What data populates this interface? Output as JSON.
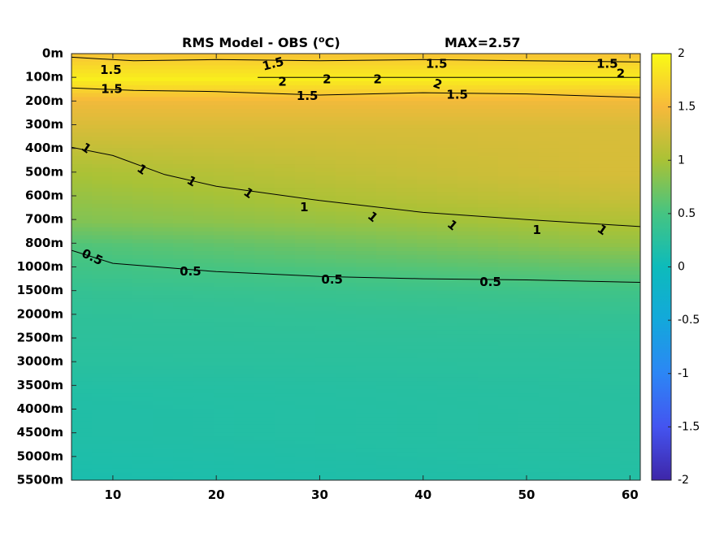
{
  "chart_data": {
    "type": "heatmap",
    "title": "RMS Model - OBS (",
    "title_degree": "o",
    "title_unit": "C)",
    "max_annotation": "MAX=2.57",
    "xlabel": "",
    "ylabel": "",
    "x_ticks": [
      "10",
      "20",
      "30",
      "40",
      "50",
      "60"
    ],
    "x_tick_values": [
      10,
      20,
      30,
      40,
      50,
      60
    ],
    "xlim": [
      6,
      61
    ],
    "y_ticks": [
      "0m",
      "100m",
      "200m",
      "300m",
      "400m",
      "500m",
      "600m",
      "700m",
      "800m",
      "1000m",
      "1500m",
      "2000m",
      "2500m",
      "3000m",
      "3500m",
      "4000m",
      "4500m",
      "5000m",
      "5500m"
    ],
    "colorbar": {
      "range": [
        -2,
        2
      ],
      "ticks": [
        "2",
        "1.5",
        "1",
        "0.5",
        "0",
        "-0.5",
        "-1",
        "-1.5",
        "-2"
      ],
      "tick_values": [
        2,
        1.5,
        1,
        0.5,
        0,
        -0.5,
        -1,
        -1.5,
        -2
      ],
      "colormap": "parula"
    },
    "field_levels": [
      {
        "y_index": 0,
        "values": [
          1.6,
          1.6
        ]
      },
      {
        "y_index": 1,
        "values": [
          1.9,
          1.9
        ]
      },
      {
        "y_index": 2,
        "values": [
          1.45,
          1.45
        ]
      },
      {
        "y_index": 3,
        "values": [
          1.3,
          1.3
        ]
      },
      {
        "y_index": 4,
        "values": [
          1.15,
          1.3
        ]
      },
      {
        "y_index": 5,
        "values": [
          1.0,
          1.3
        ]
      },
      {
        "y_index": 6,
        "values": [
          0.9,
          1.2
        ]
      },
      {
        "y_index": 7,
        "values": [
          0.8,
          1.05
        ]
      },
      {
        "y_index": 8,
        "values": [
          0.55,
          0.9
        ]
      },
      {
        "y_index": 9,
        "values": [
          0.45,
          0.65
        ]
      },
      {
        "y_index": 10,
        "values": [
          0.35,
          0.45
        ]
      },
      {
        "y_index": 11,
        "values": [
          0.3,
          0.35
        ]
      },
      {
        "y_index": 12,
        "values": [
          0.28,
          0.3
        ]
      },
      {
        "y_index": 13,
        "values": [
          0.25,
          0.27
        ]
      },
      {
        "y_index": 14,
        "values": [
          0.2,
          0.25
        ]
      },
      {
        "y_index": 15,
        "values": [
          0.18,
          0.24
        ]
      },
      {
        "y_index": 16,
        "values": [
          0.18,
          0.24
        ]
      },
      {
        "y_index": 17,
        "values": [
          0.15,
          0.22
        ]
      },
      {
        "y_index": 18,
        "values": [
          0.12,
          0.2
        ]
      }
    ],
    "contours": [
      {
        "level": "1.5",
        "points": [
          [
            6,
            0.15
          ],
          [
            12,
            0.3
          ],
          [
            20,
            0.25
          ],
          [
            30,
            0.3
          ],
          [
            40,
            0.25
          ],
          [
            50,
            0.3
          ],
          [
            61,
            0.35
          ]
        ]
      },
      {
        "level": "2",
        "points": [
          [
            24,
            1.0
          ],
          [
            30,
            1.0
          ],
          [
            40,
            1.0
          ],
          [
            50,
            1.0
          ],
          [
            61,
            1.0
          ]
        ]
      },
      {
        "level": "1.5",
        "points": [
          [
            6,
            1.45
          ],
          [
            12,
            1.55
          ],
          [
            20,
            1.6
          ],
          [
            30,
            1.75
          ],
          [
            40,
            1.65
          ],
          [
            50,
            1.7
          ],
          [
            61,
            1.85
          ]
        ]
      },
      {
        "level": "1",
        "points": [
          [
            6,
            3.95
          ],
          [
            10,
            4.3
          ],
          [
            15,
            5.1
          ],
          [
            20,
            5.6
          ],
          [
            30,
            6.2
          ],
          [
            40,
            6.7
          ],
          [
            50,
            7.0
          ],
          [
            61,
            7.3
          ]
        ]
      },
      {
        "level": "0.5",
        "points": [
          [
            6,
            8.3
          ],
          [
            10,
            8.85
          ],
          [
            20,
            9.2
          ],
          [
            30,
            9.4
          ],
          [
            40,
            9.5
          ],
          [
            50,
            9.55
          ],
          [
            61,
            9.65
          ]
        ]
      }
    ],
    "contour_labels": [
      {
        "text": "1.5",
        "x": 25.5,
        "y": 0.45,
        "angle": -15
      },
      {
        "text": "1.5",
        "x": 41.3,
        "y": 0.45,
        "angle": 0
      },
      {
        "text": "1.5",
        "x": 57.8,
        "y": 0.45,
        "angle": 0
      },
      {
        "text": "1.5",
        "x": 9.8,
        "y": 0.7,
        "angle": 0
      },
      {
        "text": "2",
        "x": 26.4,
        "y": 1.2,
        "angle": 0
      },
      {
        "text": "2",
        "x": 30.7,
        "y": 1.1,
        "angle": 0
      },
      {
        "text": "2",
        "x": 35.6,
        "y": 1.1,
        "angle": 0
      },
      {
        "text": "2",
        "x": 41.4,
        "y": 1.3,
        "angle": 20
      },
      {
        "text": "2",
        "x": 59.1,
        "y": 0.85,
        "angle": 0
      },
      {
        "text": "1.5",
        "x": 9.9,
        "y": 1.5,
        "angle": 0
      },
      {
        "text": "1.5",
        "x": 28.8,
        "y": 1.8,
        "angle": 0
      },
      {
        "text": "1.5",
        "x": 43.3,
        "y": 1.75,
        "angle": 0
      },
      {
        "text": "1",
        "x": 7.4,
        "y": 4.0,
        "angle": 35
      },
      {
        "text": "1",
        "x": 12.8,
        "y": 4.9,
        "angle": 35
      },
      {
        "text": "1",
        "x": 17.6,
        "y": 5.4,
        "angle": 30
      },
      {
        "text": "1",
        "x": 23.1,
        "y": 5.9,
        "angle": 35
      },
      {
        "text": "1",
        "x": 28.5,
        "y": 6.5,
        "angle": 0
      },
      {
        "text": "1",
        "x": 35.1,
        "y": 6.9,
        "angle": 40
      },
      {
        "text": "1",
        "x": 42.8,
        "y": 7.25,
        "angle": 40
      },
      {
        "text": "1",
        "x": 51.0,
        "y": 7.45,
        "angle": 0
      },
      {
        "text": "1",
        "x": 57.3,
        "y": 7.45,
        "angle": 35
      },
      {
        "text": "0.5",
        "x": 8.0,
        "y": 8.6,
        "angle": 25
      },
      {
        "text": "0.5",
        "x": 17.5,
        "y": 9.2,
        "angle": 0
      },
      {
        "text": "0.5",
        "x": 31.2,
        "y": 9.55,
        "angle": 0
      },
      {
        "text": "0.5",
        "x": 46.5,
        "y": 9.65,
        "angle": 0
      }
    ],
    "grid": false,
    "legend": "colorbar-right"
  }
}
